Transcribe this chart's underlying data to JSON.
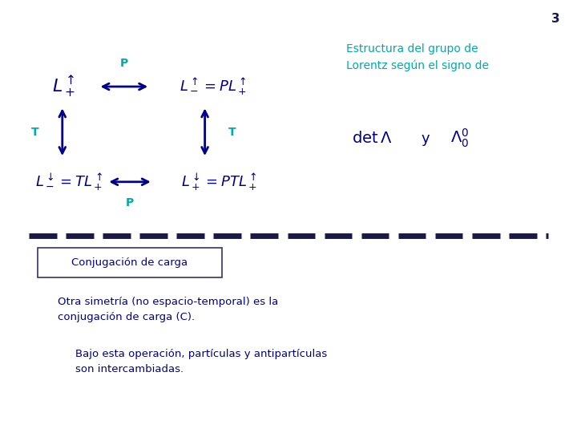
{
  "background_color": "#c8d8e8",
  "slide_bg": "#ffffff",
  "title_text": "Estructura del grupo de\nLorentz según el signo de",
  "title_color": "#00aaaa",
  "title_fontsize": 10,
  "page_number": "3",
  "math_color": "#00008B",
  "label_P_color": "#00aaaa",
  "label_T_color": "#00aaaa",
  "dashed_line_color": "#1a1a4a",
  "box_label": "Conjugación de carga",
  "text1": "Otra simetría (no espacio-temporal) es la\nconjugación de carga (C).",
  "text2": "Bajo esta operación, partículas y antipartículas\nson intercambiadas.",
  "text_color": "#00008B",
  "formulas": {
    "top_left": "$L_+^{\\uparrow}$",
    "top_right_eq": "$L_-^{\\uparrow} = PL_+^{\\uparrow}$",
    "bot_left_eq": "$L_-^{\\downarrow} = TL_+^{\\uparrow}$",
    "bot_right_eq": "$L_+^{\\downarrow} = PTL_+^{\\uparrow}$",
    "det_text": "$\\det\\Lambda$",
    "y_text": "y",
    "lambda0_text": "$\\Lambda_0^0$"
  }
}
